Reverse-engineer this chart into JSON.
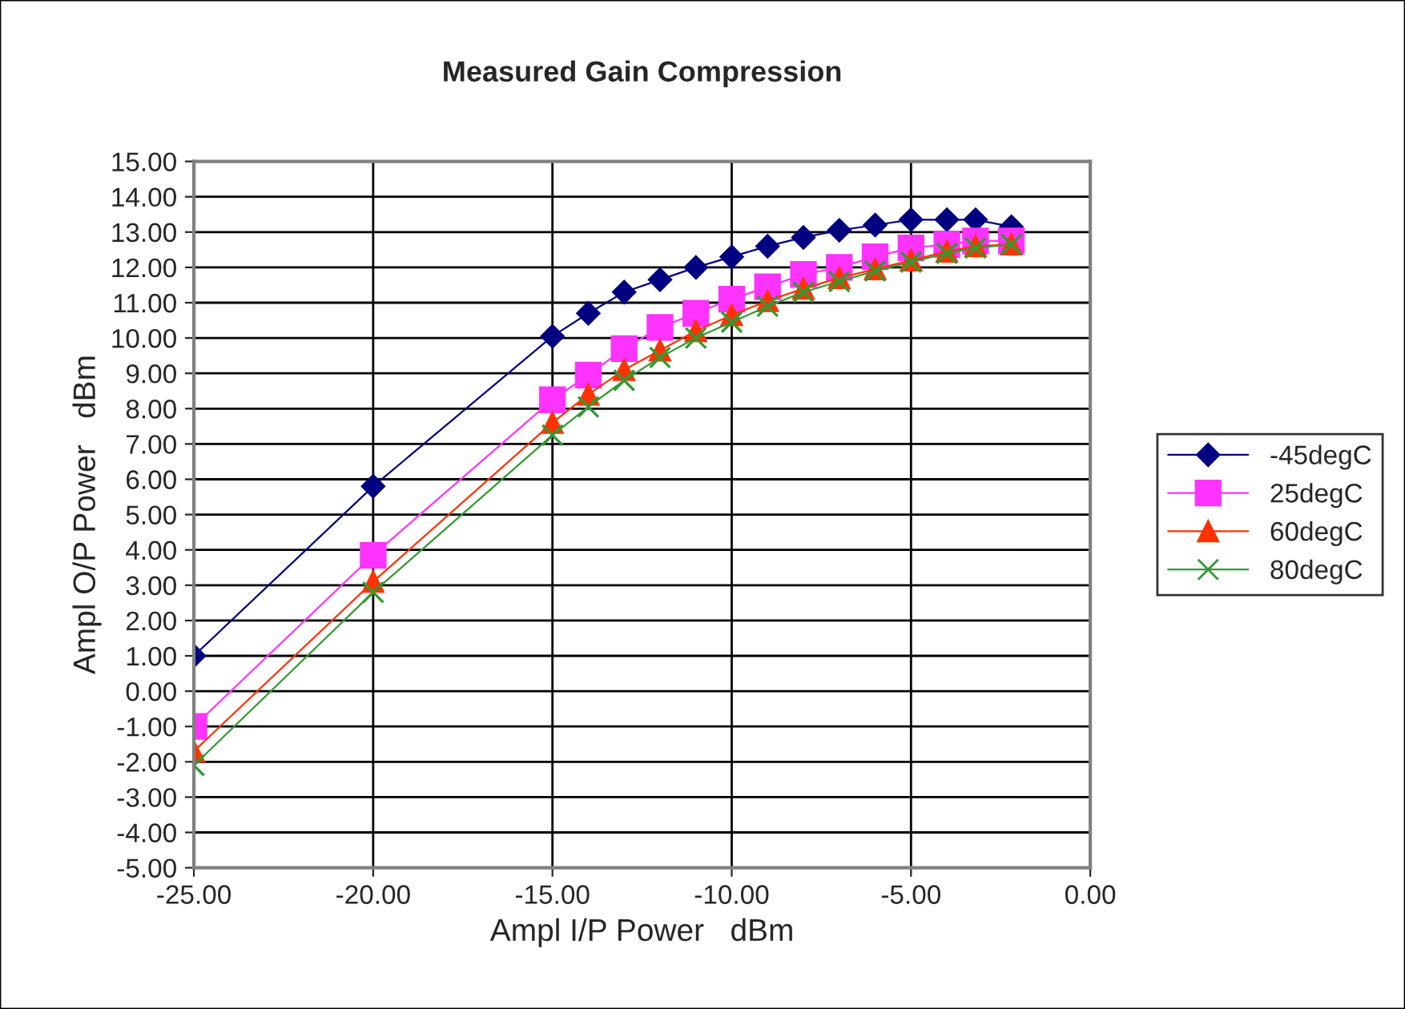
{
  "chart_data": {
    "type": "line",
    "title": "Measured Gain Compression",
    "xlabel": "Ampl I/P Power   dBm",
    "ylabel": "Ampl O/P Power   dBm",
    "x": [
      -25,
      -20,
      -15,
      -14,
      -13,
      -12,
      -11,
      -10,
      -9,
      -8,
      -7,
      -6,
      -5,
      -4,
      -3.2,
      -2.2
    ],
    "series": [
      {
        "name": "-45degC",
        "color": "#000080",
        "marker": "diamond",
        "values": [
          1.0,
          5.8,
          10.05,
          10.7,
          11.3,
          11.65,
          12.0,
          12.3,
          12.6,
          12.85,
          13.05,
          13.2,
          13.35,
          13.35,
          13.35,
          13.15
        ]
      },
      {
        "name": "25degC",
        "color": "#ff33ff",
        "marker": "square",
        "values": [
          -1.0,
          3.85,
          8.25,
          8.95,
          9.7,
          10.3,
          10.7,
          11.1,
          11.45,
          11.8,
          12.0,
          12.3,
          12.55,
          12.65,
          12.75,
          12.75
        ]
      },
      {
        "name": "60degC",
        "color": "#ff3300",
        "marker": "triangle",
        "values": [
          -1.7,
          3.1,
          7.6,
          8.4,
          9.1,
          9.65,
          10.2,
          10.65,
          11.05,
          11.4,
          11.7,
          11.95,
          12.2,
          12.45,
          12.6,
          12.65
        ]
      },
      {
        "name": "80degC",
        "color": "#339933",
        "marker": "cross",
        "values": [
          -2.1,
          2.8,
          7.25,
          8.05,
          8.8,
          9.45,
          10.0,
          10.45,
          10.9,
          11.3,
          11.6,
          11.9,
          12.15,
          12.4,
          12.55,
          12.65
        ]
      }
    ],
    "xlim": [
      -25,
      0
    ],
    "xticks": [
      {
        "value": -25,
        "label": "-25.00"
      },
      {
        "value": -20,
        "label": "-20.00"
      },
      {
        "value": -15,
        "label": "-15.00"
      },
      {
        "value": -10,
        "label": "-10.00"
      },
      {
        "value": -5,
        "label": "-5.00"
      },
      {
        "value": 0,
        "label": "0.00"
      }
    ],
    "ylim": [
      -5,
      15
    ],
    "yticks": [
      {
        "value": -5,
        "label": "-5.00"
      },
      {
        "value": -4,
        "label": "-4.00"
      },
      {
        "value": -3,
        "label": "-3.00"
      },
      {
        "value": -2,
        "label": "-2.00"
      },
      {
        "value": -1,
        "label": "-1.00"
      },
      {
        "value": 0,
        "label": "0.00"
      },
      {
        "value": 1,
        "label": "1.00"
      },
      {
        "value": 2,
        "label": "2.00"
      },
      {
        "value": 3,
        "label": "3.00"
      },
      {
        "value": 4,
        "label": "4.00"
      },
      {
        "value": 5,
        "label": "5.00"
      },
      {
        "value": 6,
        "label": "6.00"
      },
      {
        "value": 7,
        "label": "7.00"
      },
      {
        "value": 8,
        "label": "8.00"
      },
      {
        "value": 9,
        "label": "9.00"
      },
      {
        "value": 10,
        "label": "10.00"
      },
      {
        "value": 11,
        "label": "11.00"
      },
      {
        "value": 12,
        "label": "12.00"
      },
      {
        "value": 13,
        "label": "13.00"
      },
      {
        "value": 14,
        "label": "14.00"
      },
      {
        "value": 15,
        "label": "15.00"
      }
    ],
    "grid": true,
    "legend": "right",
    "line_style": "solid"
  }
}
